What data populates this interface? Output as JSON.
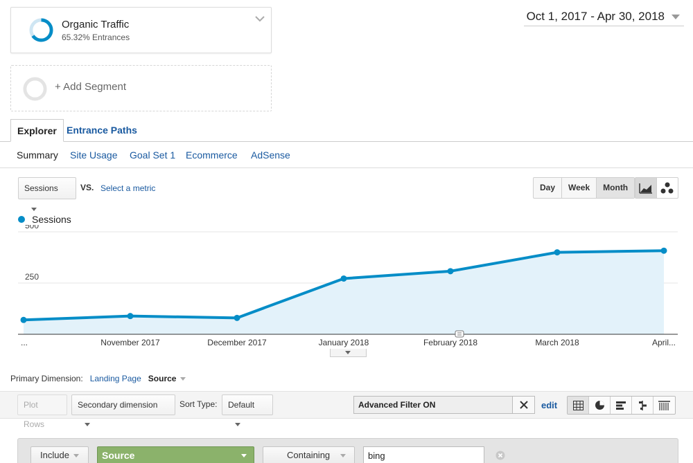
{
  "segments": {
    "organic": {
      "title": "Organic Traffic",
      "subtitle": "65.32% Entrances",
      "percent": 65.32
    },
    "add_label": "+ Add Segment"
  },
  "date_range": "Oct 1, 2017 - Apr 30, 2018",
  "tabs": [
    {
      "label": "Explorer",
      "active": true
    },
    {
      "label": "Entrance Paths",
      "active": false
    }
  ],
  "subtabs": [
    "Summary",
    "Site Usage",
    "Goal Set 1",
    "Ecommerce",
    "AdSense"
  ],
  "controls": {
    "metric_select": "Sessions",
    "vs": "VS.",
    "select_metric": "Select a metric",
    "granularity": [
      "Day",
      "Week",
      "Month"
    ],
    "granularity_selected": "Month"
  },
  "chart_data": {
    "type": "area",
    "series": [
      {
        "name": "Sessions",
        "values": [
          70,
          89,
          80,
          272,
          308,
          400,
          408
        ]
      }
    ],
    "x": [
      "...",
      "November 2017",
      "December 2017",
      "January 2018",
      "February 2018",
      "March 2018",
      "April..."
    ],
    "yticks": [
      250,
      500
    ],
    "ylim": [
      0,
      500
    ],
    "color": "#058dc7",
    "fill": "#e3f2fa",
    "grid": true,
    "legend": "top-left"
  },
  "primary_dimension": {
    "label": "Primary Dimension:",
    "options": [
      "Landing Page",
      "Source"
    ],
    "selected": "Source"
  },
  "table_toolbar": {
    "plot_rows": "Plot Rows",
    "secondary_dimension": "Secondary dimension",
    "sort_type_label": "Sort Type:",
    "sort_type_value": "Default",
    "filter_status": "Advanced Filter ON",
    "edit": "edit",
    "views": [
      "table-icon",
      "pie-icon",
      "bar-icon",
      "comparison-icon",
      "pivot-icon"
    ]
  },
  "advanced_filter": {
    "include": "Include",
    "dimension": "Source",
    "match": "Containing",
    "value": "bing"
  }
}
